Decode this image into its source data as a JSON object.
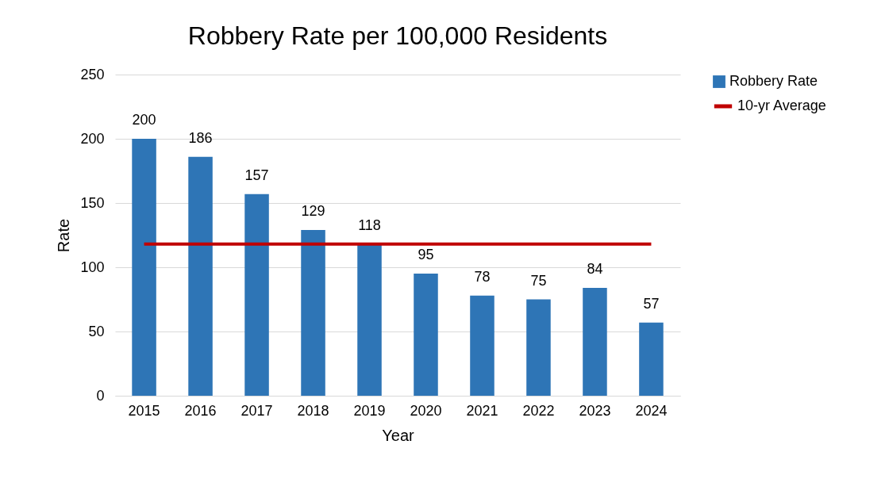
{
  "chart_data": {
    "type": "bar",
    "title": "Robbery Rate per 100,000 Residents",
    "xlabel": "Year",
    "ylabel": "Rate",
    "categories": [
      "2015",
      "2016",
      "2017",
      "2018",
      "2019",
      "2020",
      "2021",
      "2022",
      "2023",
      "2024"
    ],
    "series": [
      {
        "name": "Robbery Rate",
        "color": "#2e75b6",
        "values": [
          200,
          186,
          157,
          129,
          118,
          95,
          78,
          75,
          84,
          57
        ],
        "value_labels": [
          "200",
          "186",
          "157",
          "129",
          "118",
          "95",
          "78",
          "75",
          "84",
          "57"
        ]
      },
      {
        "name": "10-yr Average",
        "type": "line",
        "color": "#c00000",
        "values": [
          118,
          118,
          118,
          118,
          118,
          118,
          118,
          118,
          118,
          118
        ]
      }
    ],
    "ylim": [
      0,
      250
    ],
    "yticks": [
      0,
      50,
      100,
      150,
      200,
      250
    ],
    "grid": "y",
    "legend": "right",
    "marker": "none",
    "line_style": "solid"
  }
}
